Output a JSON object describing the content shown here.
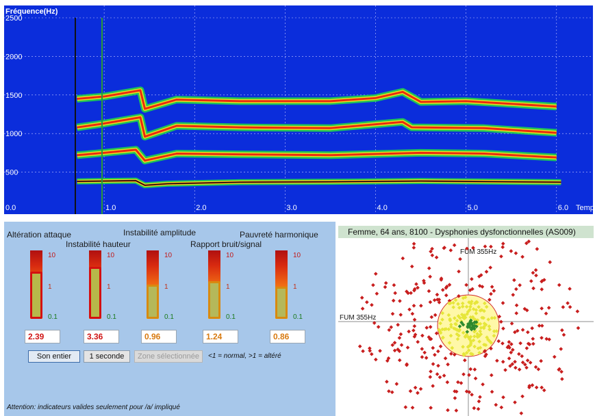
{
  "spectrogram": {
    "y_axis_title": "Fréquence(Hz)",
    "y_ticks": [
      "2500",
      "2000",
      "1500",
      "1000",
      "500"
    ],
    "x_ticks": [
      "0.0",
      "1.0",
      "2.0",
      "3.0",
      "4.0",
      "5.0",
      "6.0"
    ],
    "x_axis_title": "Temps",
    "colors": {
      "background": "#0b2ddb",
      "grid": "#c8c8ff",
      "cursor": "#111111"
    },
    "chart_data": {
      "type": "heatmap",
      "xlim": [
        0,
        6.1
      ],
      "ylim": [
        0,
        2500
      ],
      "series": [
        {
          "points": [
            [
              0.7,
              380
            ],
            [
              1.0,
              385
            ],
            [
              1.35,
              390
            ],
            [
              1.45,
              330
            ],
            [
              1.7,
              350
            ],
            [
              2.5,
              370
            ],
            [
              3.5,
              375
            ],
            [
              4.5,
              385
            ],
            [
              5.5,
              375
            ],
            [
              6.05,
              370
            ]
          ]
        },
        {
          "points": [
            [
              0.7,
              720
            ],
            [
              1.0,
              750
            ],
            [
              1.35,
              790
            ],
            [
              1.45,
              650
            ],
            [
              1.8,
              740
            ],
            [
              2.5,
              730
            ],
            [
              3.5,
              720
            ],
            [
              4.5,
              750
            ],
            [
              5.2,
              740
            ],
            [
              6.0,
              690
            ]
          ]
        },
        {
          "points": [
            [
              0.7,
              1080
            ],
            [
              1.0,
              1130
            ],
            [
              1.4,
              1210
            ],
            [
              1.45,
              960
            ],
            [
              1.8,
              1100
            ],
            [
              2.5,
              1080
            ],
            [
              3.5,
              1070
            ],
            [
              4.3,
              1150
            ],
            [
              4.4,
              1080
            ],
            [
              5.2,
              1070
            ],
            [
              6.0,
              1010
            ]
          ]
        },
        {
          "points": [
            [
              0.7,
              1450
            ],
            [
              1.0,
              1480
            ],
            [
              1.4,
              1560
            ],
            [
              1.45,
              1320
            ],
            [
              1.8,
              1440
            ],
            [
              2.5,
              1420
            ],
            [
              3.5,
              1420
            ],
            [
              4.0,
              1460
            ],
            [
              4.3,
              1540
            ],
            [
              4.5,
              1410
            ],
            [
              5.0,
              1420
            ],
            [
              6.0,
              1350
            ]
          ]
        }
      ]
    }
  },
  "indicators": {
    "labels": {
      "attack": "Altération attaque",
      "pitch": "Instabilité hauteur",
      "amplitude": "Instabilité amplitude",
      "noise": "Rapport bruit/signal",
      "harmonic": "Pauvreté harmonique"
    },
    "tick_labels": {
      "high": "10",
      "mid": "1",
      "low": "0.1"
    },
    "values": [
      "2.39",
      "3.36",
      "0.96",
      "1.24",
      "0.86"
    ],
    "levels": [
      0.69,
      0.76,
      0.5,
      0.55,
      0.47
    ],
    "buttons": {
      "whole": "Son entier",
      "one_second": "1 seconde",
      "selected_zone": "Zone sélectionnée"
    },
    "legend_note": "<1 = normal, >1 = altéré",
    "warning_note": "Attention: indicateurs valides seulement pour  /a/ impliqué"
  },
  "scatter": {
    "header": "Femme, 64 ans, 8100 -  Dysphonies dysfonctionnelles (AS009)",
    "top_label": "FUM 355Hz",
    "left_label": "FUM 355Hz",
    "colors": {
      "outer": "#c81e1e",
      "inner": "#e6e63a",
      "core": "#2e8a2e",
      "circle_fill": "#fff8a8"
    }
  }
}
